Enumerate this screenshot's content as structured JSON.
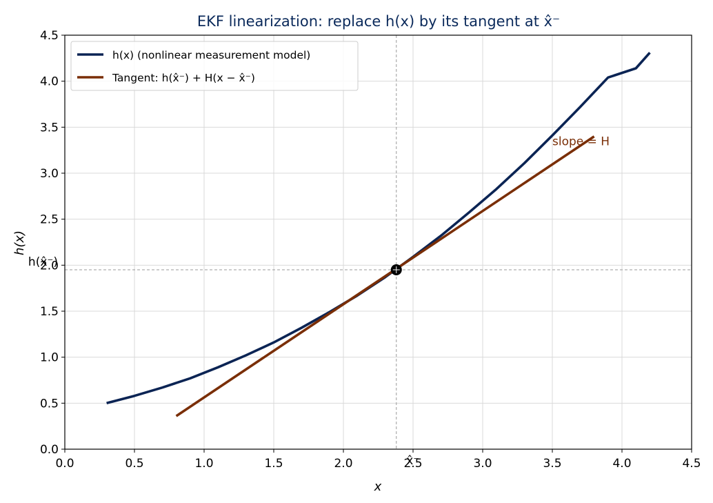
{
  "chart_data": {
    "type": "line",
    "title": "EKF linearization: replace h(x) by its tangent at x̂⁻",
    "title_color": "#0b2a5b",
    "xlabel": "x",
    "ylabel": "h(x)",
    "xlim": [
      0,
      4.5
    ],
    "ylim": [
      0,
      4.5
    ],
    "xticks": [
      "0.0",
      "0.5",
      "1.0",
      "1.5",
      "2.0",
      "2.5",
      "3.0",
      "3.5",
      "4.0",
      "4.5"
    ],
    "yticks": [
      "0.0",
      "0.5",
      "1.0",
      "1.5",
      "2.0",
      "2.5",
      "3.0",
      "3.5",
      "4.0",
      "4.5"
    ],
    "grid": true,
    "legend_position": "top-left",
    "series": [
      {
        "name": "h(x) (nonlinear measurement model)",
        "color": "#0b2454",
        "x": [
          0.3,
          0.5,
          0.7,
          0.9,
          1.1,
          1.3,
          1.5,
          1.7,
          1.9,
          2.1,
          2.3,
          2.5,
          2.7,
          2.9,
          3.1,
          3.3,
          3.5,
          3.7,
          3.9,
          4.1,
          4.2
        ],
        "y": [
          0.5,
          0.58,
          0.67,
          0.77,
          0.89,
          1.02,
          1.16,
          1.32,
          1.49,
          1.67,
          1.87,
          2.09,
          2.32,
          2.57,
          2.83,
          3.11,
          3.41,
          3.72,
          4.04,
          4.14,
          4.31
        ]
      },
      {
        "name": "Tangent: h(x̂⁻) + H(x − x̂⁻)",
        "color": "#7a2e06",
        "x": [
          0.8,
          3.8
        ],
        "y": [
          0.36,
          3.4
        ]
      }
    ],
    "point": {
      "x": 2.38,
      "y": 1.95
    },
    "annotations": {
      "slope_label": "slope = H",
      "slope_color": "#7a2e06",
      "x_marker_label": "x̂⁻",
      "y_marker_label": "h(x̂⁻)"
    }
  }
}
